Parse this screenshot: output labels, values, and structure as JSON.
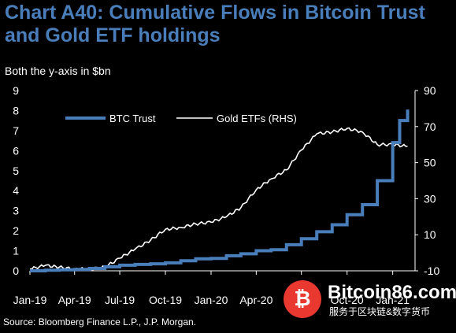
{
  "title": "Chart A40: Cumulative Flows in Bitcoin Trust and Gold ETF holdings",
  "subtitle": "Both the y-axis in $bn",
  "source": "Source: Bloomberg Finance L.P., J.P. Morgan.",
  "watermark": {
    "symbol": "₿",
    "name": "Bitcoin86.com",
    "tagline": "服务于区块链&数字货币"
  },
  "colors": {
    "btc": "#4a7ebb",
    "gold": "#ffffff",
    "title": "#4a7ebb",
    "background": "#000000"
  },
  "chart_data": {
    "type": "line",
    "title": "Chart A40: Cumulative Flows in Bitcoin Trust and Gold ETF holdings",
    "xlabel": "",
    "ylabel": "Both the y-axis in $bn",
    "x_ticks": [
      "Jan-19",
      "Apr-19",
      "Jul-19",
      "Oct-19",
      "Jan-20",
      "Apr-20",
      "Jul-20",
      "Oct-20",
      "Jan-21"
    ],
    "y_left_ticks": [
      0,
      1,
      2,
      3,
      4,
      5,
      6,
      7,
      8,
      9
    ],
    "y_right_ticks": [
      -10,
      10,
      30,
      50,
      70,
      90
    ],
    "ylim_left": [
      0,
      9
    ],
    "ylim_right": [
      -10,
      90
    ],
    "legend": "top-left",
    "grid": false,
    "series": [
      {
        "name": "BTC Trust",
        "axis": "left",
        "color": "#4a7ebb",
        "points": [
          [
            "2019-01-01",
            0.0
          ],
          [
            "2019-02-01",
            0.03
          ],
          [
            "2019-03-01",
            0.05
          ],
          [
            "2019-04-01",
            0.07
          ],
          [
            "2019-05-01",
            0.12
          ],
          [
            "2019-06-01",
            0.2
          ],
          [
            "2019-07-01",
            0.28
          ],
          [
            "2019-08-01",
            0.32
          ],
          [
            "2019-09-01",
            0.35
          ],
          [
            "2019-10-01",
            0.4
          ],
          [
            "2019-11-01",
            0.5
          ],
          [
            "2019-12-01",
            0.6
          ],
          [
            "2020-01-01",
            0.62
          ],
          [
            "2020-02-01",
            0.75
          ],
          [
            "2020-03-01",
            0.85
          ],
          [
            "2020-04-01",
            1.0
          ],
          [
            "2020-05-01",
            1.05
          ],
          [
            "2020-06-01",
            1.3
          ],
          [
            "2020-07-01",
            1.6
          ],
          [
            "2020-08-01",
            1.95
          ],
          [
            "2020-09-01",
            2.3
          ],
          [
            "2020-10-01",
            2.8
          ],
          [
            "2020-11-01",
            3.3
          ],
          [
            "2020-12-01",
            4.5
          ],
          [
            "2021-01-01",
            6.4
          ],
          [
            "2021-01-15",
            7.5
          ],
          [
            "2021-01-31",
            8.05
          ]
        ]
      },
      {
        "name": "Gold ETFs (RHS)",
        "axis": "right",
        "color": "#ffffff",
        "points": [
          [
            "2019-01-01",
            -9
          ],
          [
            "2019-02-01",
            -7
          ],
          [
            "2019-03-01",
            -8
          ],
          [
            "2019-04-01",
            -9
          ],
          [
            "2019-05-01",
            -9
          ],
          [
            "2019-06-01",
            -8
          ],
          [
            "2019-07-01",
            -3
          ],
          [
            "2019-08-01",
            2
          ],
          [
            "2019-09-01",
            7
          ],
          [
            "2019-10-01",
            13
          ],
          [
            "2019-11-01",
            14
          ],
          [
            "2019-12-01",
            16
          ],
          [
            "2020-01-01",
            17
          ],
          [
            "2020-02-01",
            20
          ],
          [
            "2020-03-01",
            25
          ],
          [
            "2020-04-01",
            35
          ],
          [
            "2020-05-01",
            41
          ],
          [
            "2020-06-01",
            46
          ],
          [
            "2020-07-01",
            57
          ],
          [
            "2020-08-01",
            66
          ],
          [
            "2020-09-01",
            67
          ],
          [
            "2020-10-01",
            69
          ],
          [
            "2020-11-01",
            67
          ],
          [
            "2020-12-01",
            60
          ],
          [
            "2021-01-01",
            60
          ],
          [
            "2021-01-31",
            59
          ]
        ]
      }
    ]
  }
}
